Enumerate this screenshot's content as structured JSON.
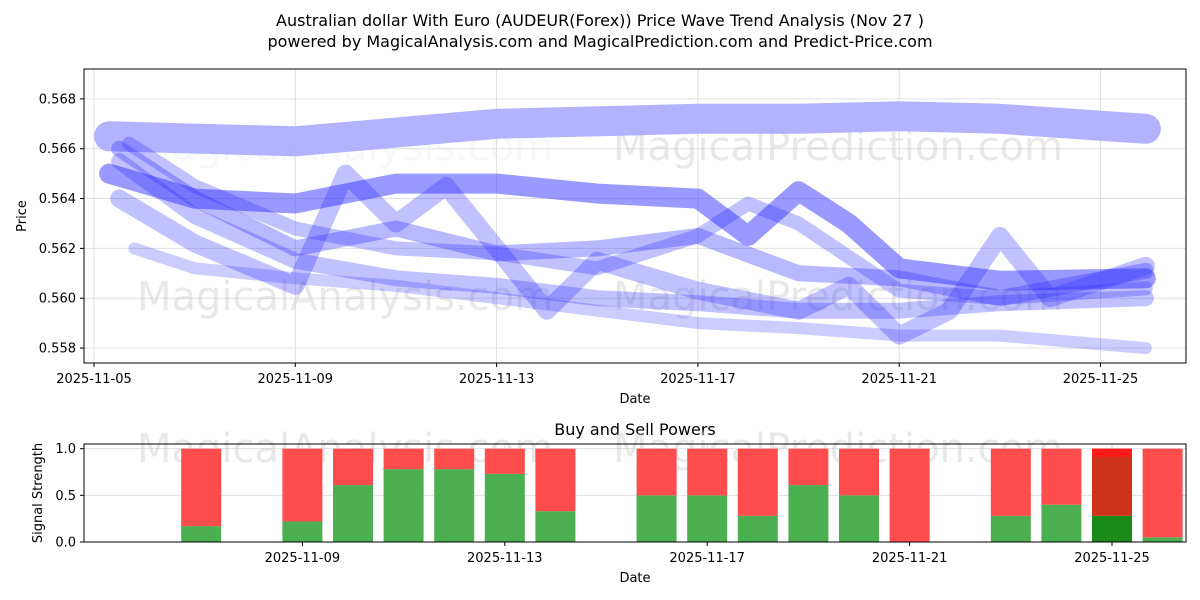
{
  "figure": {
    "title_line1": "Australian dollar With Euro (AUDEUR(Forex)) Price Wave Trend Analysis (Nov 27 )",
    "title_line2": "powered by MagicalAnalysis.com and MagicalPrediction.com and Predict-Price.com",
    "watermarks": [
      "MagicalAnalysis.com",
      "MagicalPrediction.com"
    ]
  },
  "colors": {
    "wave": "#3333ff",
    "wave_light": "#aaaaff",
    "buy": "#4caf50",
    "sell": "#ff4c4c",
    "buy_dark": "#1a8a1a",
    "sell_dark": "#cc3318",
    "sell_top_dark": "#ff1a1a"
  },
  "chart_data": [
    {
      "type": "line",
      "title": "",
      "xlabel": "Date",
      "ylabel": "Price",
      "x_domain_days": [
        0,
        21.5
      ],
      "x_ticks": [
        {
          "day": 0,
          "label": "2025-11-05"
        },
        {
          "day": 4,
          "label": "2025-11-09"
        },
        {
          "day": 8,
          "label": "2025-11-13"
        },
        {
          "day": 12,
          "label": "2025-11-17"
        },
        {
          "day": 16,
          "label": "2025-11-21"
        },
        {
          "day": 20,
          "label": "2025-11-25"
        }
      ],
      "ylim": [
        0.5574,
        0.5692
      ],
      "y_ticks": [
        "0.558",
        "0.560",
        "0.562",
        "0.564",
        "0.566",
        "0.568"
      ],
      "y_tick_values": [
        0.558,
        0.56,
        0.562,
        0.564,
        0.566,
        0.568
      ],
      "grid": true,
      "series": [
        {
          "name": "wave-upper",
          "days": [
            0.3,
            4,
            8,
            12,
            14,
            16,
            18,
            20.9
          ],
          "values": [
            0.5665,
            0.5663,
            0.567,
            0.5672,
            0.5672,
            0.5673,
            0.5672,
            0.5668
          ],
          "width": 30,
          "opacity": 0.9
        },
        {
          "name": "wave-main",
          "days": [
            0.3,
            2,
            4,
            6,
            8,
            10,
            12,
            13,
            14,
            15,
            16,
            18,
            20.9
          ],
          "values": [
            0.565,
            0.564,
            0.5638,
            0.5646,
            0.5646,
            0.5642,
            0.564,
            0.5625,
            0.5643,
            0.563,
            0.5612,
            0.5607,
            0.5608
          ],
          "width": 20,
          "opacity": 0.5
        },
        {
          "name": "wave-2",
          "days": [
            0.5,
            2,
            4,
            6,
            8,
            10,
            12,
            14,
            16,
            18,
            20.9
          ],
          "values": [
            0.566,
            0.564,
            0.562,
            0.5628,
            0.5618,
            0.562,
            0.5625,
            0.561,
            0.5608,
            0.56,
            0.5611
          ],
          "width": 16,
          "opacity": 0.35
        },
        {
          "name": "wave-3",
          "days": [
            0.5,
            2,
            4,
            6,
            8,
            10,
            12,
            14,
            16,
            18,
            20.9
          ],
          "values": [
            0.5655,
            0.5633,
            0.5615,
            0.5608,
            0.5605,
            0.56,
            0.5598,
            0.5595,
            0.5595,
            0.5598,
            0.56
          ],
          "width": 16,
          "opacity": 0.3
        },
        {
          "name": "wave-4",
          "days": [
            0.5,
            2,
            4,
            5,
            6,
            7,
            8,
            9,
            10,
            12,
            14,
            15,
            16,
            17,
            18,
            19,
            20.9
          ],
          "values": [
            0.564,
            0.5622,
            0.5605,
            0.565,
            0.563,
            0.5645,
            0.562,
            0.5595,
            0.5615,
            0.5603,
            0.5595,
            0.5605,
            0.5585,
            0.5595,
            0.5625,
            0.56,
            0.5613
          ],
          "width": 18,
          "opacity": 0.3
        },
        {
          "name": "wave-5",
          "days": [
            0.7,
            2,
            4,
            6,
            8,
            10,
            12,
            13,
            14,
            16,
            18,
            20.9
          ],
          "values": [
            0.5662,
            0.5645,
            0.5628,
            0.562,
            0.5618,
            0.5612,
            0.5625,
            0.5638,
            0.563,
            0.5603,
            0.56,
            0.5604
          ],
          "width": 14,
          "opacity": 0.3
        },
        {
          "name": "wave-low",
          "days": [
            0.8,
            2,
            4,
            6,
            8,
            10,
            12,
            14,
            16,
            18,
            20.9
          ],
          "values": [
            0.562,
            0.5612,
            0.5608,
            0.5605,
            0.56,
            0.5595,
            0.559,
            0.5588,
            0.5585,
            0.5585,
            0.558
          ],
          "width": 12,
          "opacity": 0.25
        }
      ]
    },
    {
      "type": "bar",
      "title": "Buy and Sell Powers",
      "xlabel": "Date",
      "ylabel": "Signal Strength",
      "ylim": [
        0,
        1.05
      ],
      "y_ticks": [
        "0.0",
        "0.5",
        "1.0"
      ],
      "y_tick_values": [
        0,
        0.5,
        1.0
      ],
      "x_ticks": [
        {
          "day": 4,
          "label": "2025-11-09"
        },
        {
          "day": 8,
          "label": "2025-11-13"
        },
        {
          "day": 12,
          "label": "2025-11-17"
        },
        {
          "day": 16,
          "label": "2025-11-21"
        },
        {
          "day": 20,
          "label": "2025-11-25"
        }
      ],
      "bars": [
        {
          "day": 2,
          "buy": 0.17,
          "sell": 0.83
        },
        {
          "day": 4,
          "buy": 0.22,
          "sell": 0.78
        },
        {
          "day": 5,
          "buy": 0.61,
          "sell": 0.39
        },
        {
          "day": 6,
          "buy": 0.78,
          "sell": 0.22
        },
        {
          "day": 7,
          "buy": 0.78,
          "sell": 0.22
        },
        {
          "day": 8,
          "buy": 0.73,
          "sell": 0.27
        },
        {
          "day": 9,
          "buy": 0.33,
          "sell": 0.67
        },
        {
          "day": 11,
          "buy": 0.5,
          "sell": 0.5
        },
        {
          "day": 12,
          "buy": 0.5,
          "sell": 0.5
        },
        {
          "day": 13,
          "buy": 0.28,
          "sell": 0.72
        },
        {
          "day": 14,
          "buy": 0.61,
          "sell": 0.39
        },
        {
          "day": 15,
          "buy": 0.5,
          "sell": 0.5
        },
        {
          "day": 16,
          "buy": 0.0,
          "sell": 1.0
        },
        {
          "day": 18,
          "buy": 0.28,
          "sell": 0.72
        },
        {
          "day": 19,
          "buy": 0.4,
          "sell": 0.6
        },
        {
          "day": 20,
          "buy": 0.28,
          "sell": 0.72,
          "highlight": true
        },
        {
          "day": 21,
          "buy": 0.05,
          "sell": 0.95
        }
      ]
    }
  ]
}
